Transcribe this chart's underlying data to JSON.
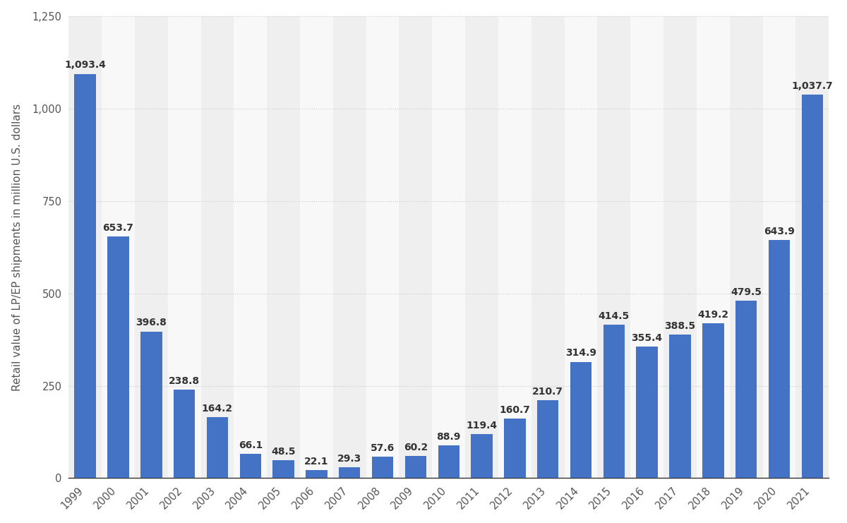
{
  "years": [
    "1999",
    "2000",
    "2001",
    "2002",
    "2003",
    "2004",
    "2005",
    "2006",
    "2007",
    "2008",
    "2009",
    "2010",
    "2011",
    "2012",
    "2013",
    "2014",
    "2015",
    "2016",
    "2017",
    "2018",
    "2019",
    "2020",
    "2021"
  ],
  "values": [
    1093.4,
    653.7,
    396.8,
    238.8,
    164.2,
    66.1,
    48.5,
    22.1,
    29.3,
    57.6,
    60.2,
    88.9,
    119.4,
    160.7,
    210.7,
    314.9,
    414.5,
    355.4,
    388.5,
    419.2,
    479.5,
    643.9,
    1037.7
  ],
  "bar_color": "#4472c4",
  "ylabel": "Retail value of LP/EP shipments in million U.S. dollars",
  "ylim": [
    0,
    1250
  ],
  "yticks": [
    0,
    250,
    500,
    750,
    1000,
    1250
  ],
  "background_color": "#ffffff",
  "plot_background_color": "#f8f8f8",
  "column_shade_color": "#efefef",
  "grid_color": "#cccccc",
  "label_fontsize": 10,
  "ylabel_fontsize": 11,
  "tick_fontsize": 10.5,
  "value_label_color": "#333333"
}
